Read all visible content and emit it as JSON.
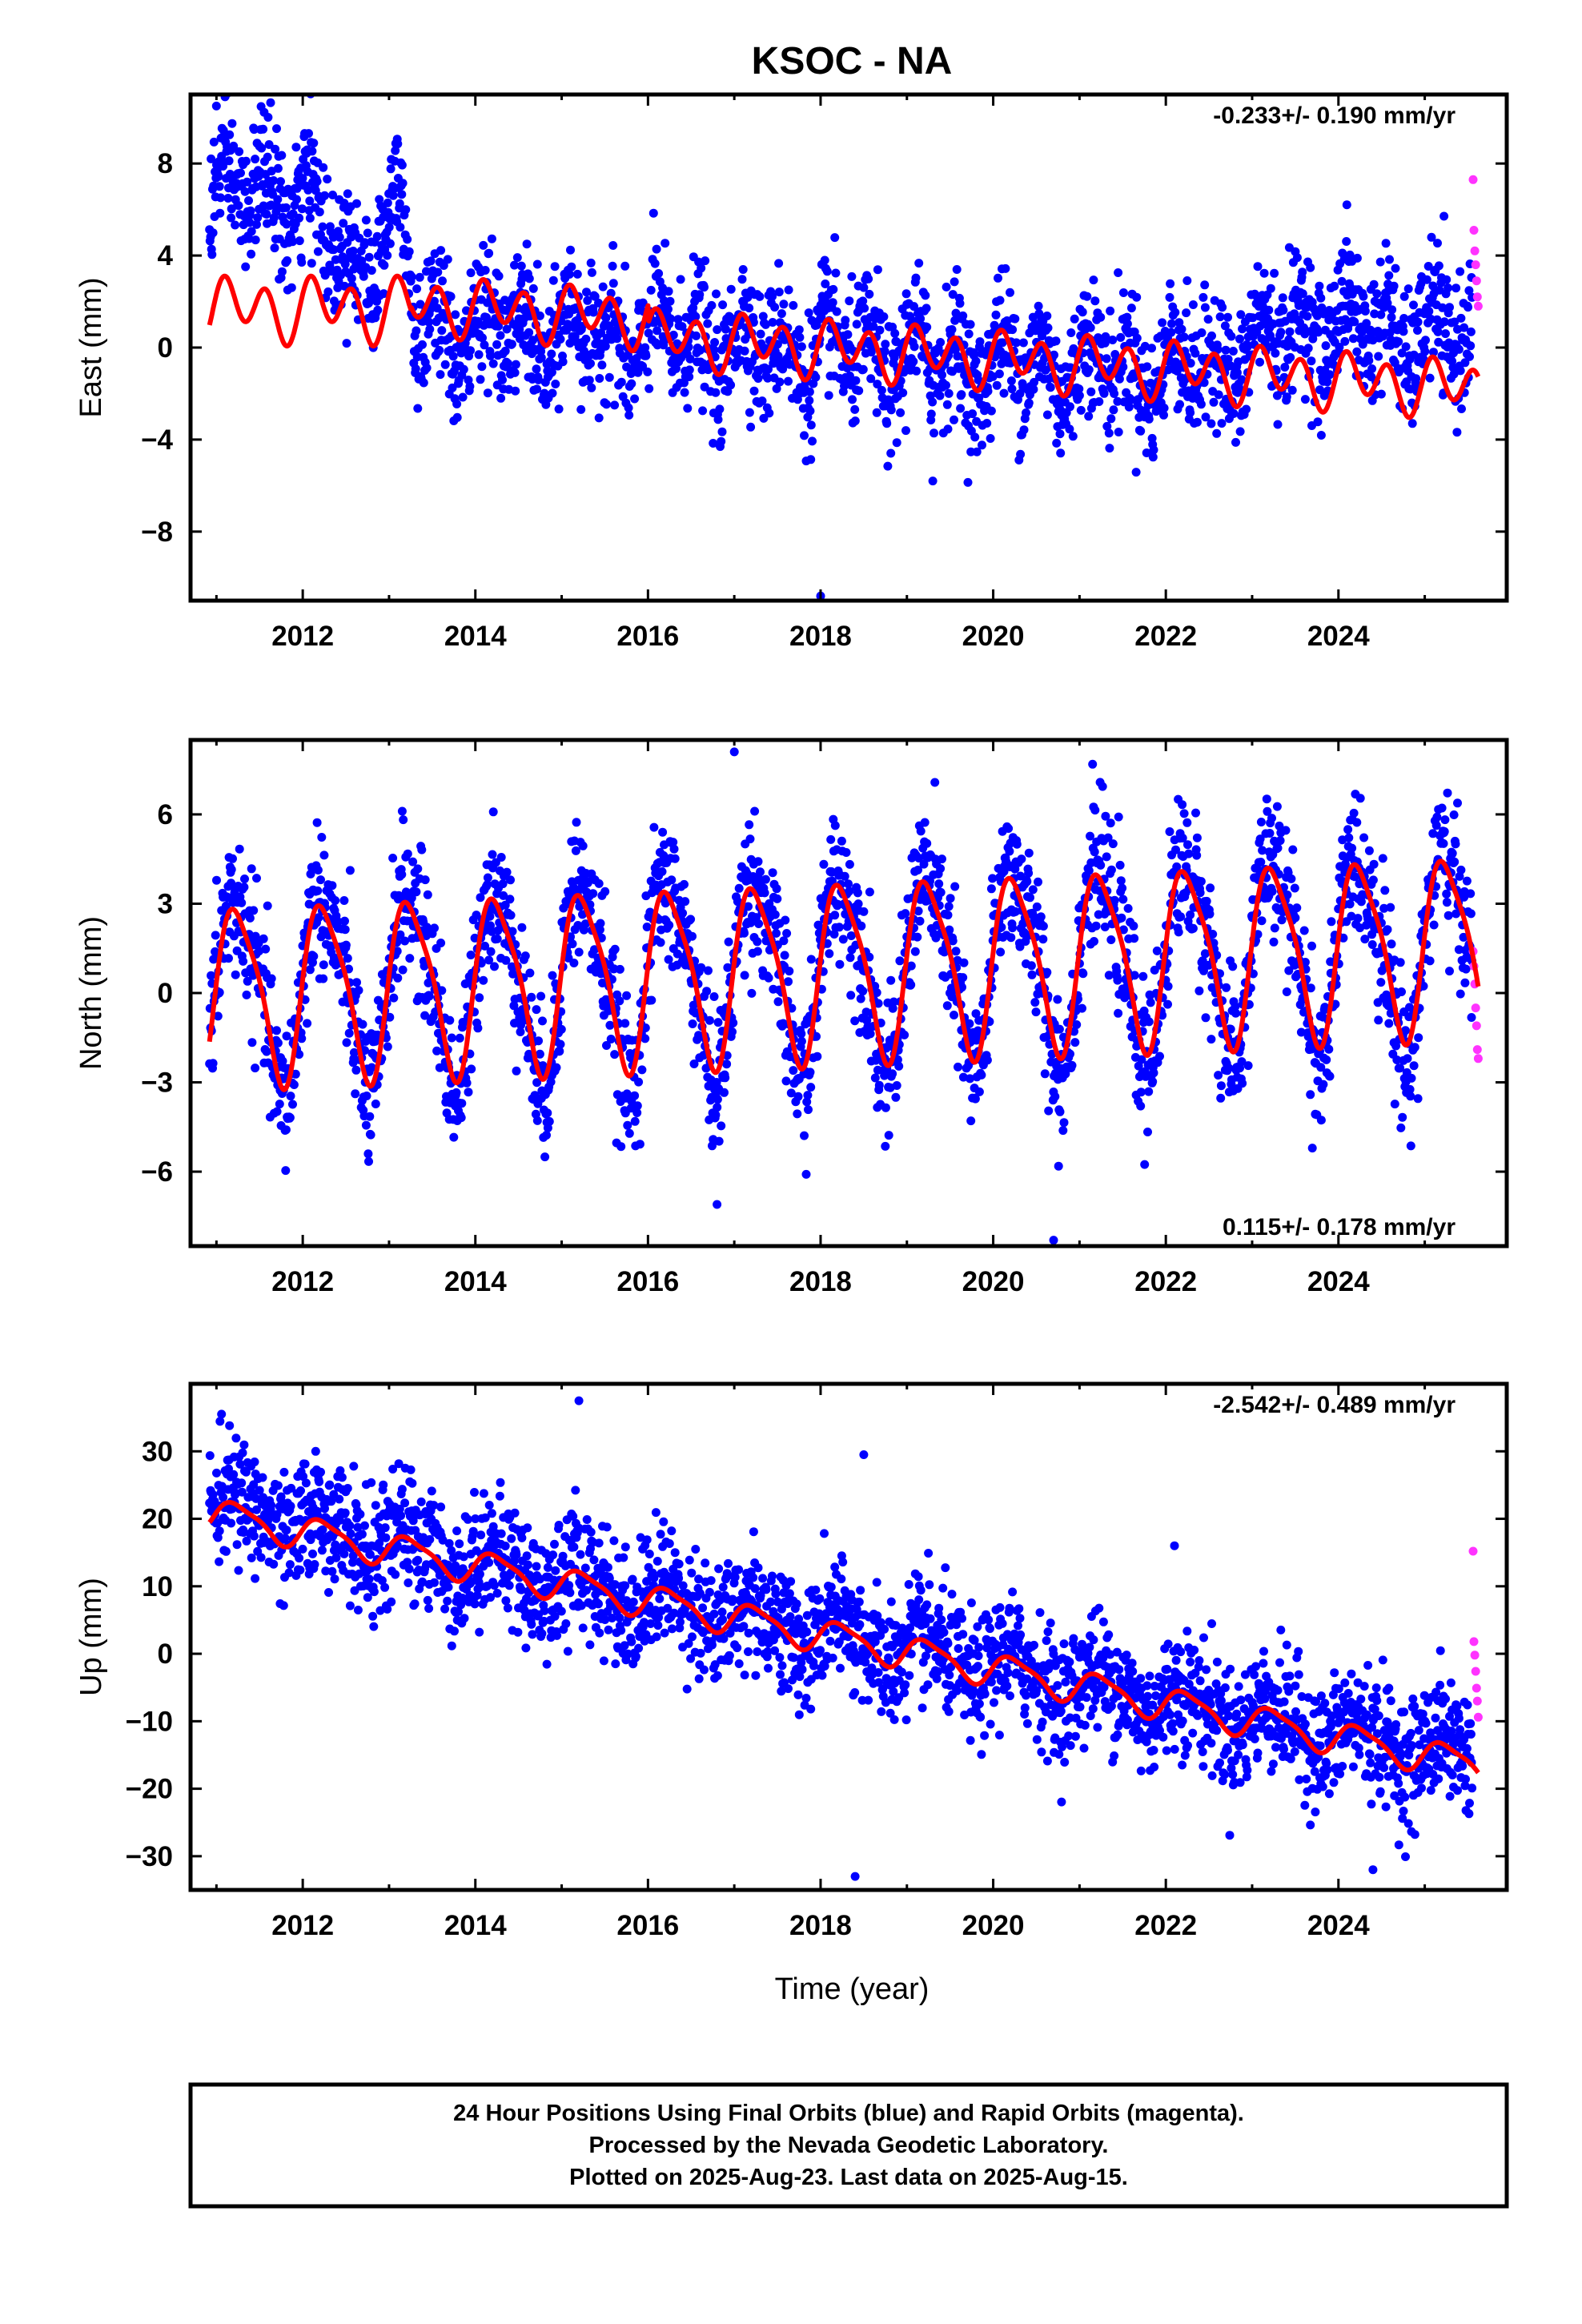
{
  "title": "KSOC - NA",
  "xlabel": "Time (year)",
  "footer": {
    "line1": "24 Hour Positions Using Final Orbits (blue) and Rapid Orbits (magenta).",
    "line2": "Processed by the Nevada Geodetic Laboratory.",
    "line3": "Plotted on 2025-Aug-23. Last data on 2025-Aug-15."
  },
  "colors": {
    "final_orbits": "#0000ff",
    "rapid_orbits": "#ff33ff",
    "model": "#ff0000",
    "frame": "#000000"
  },
  "chart_data": [
    {
      "type": "scatter",
      "name": "east",
      "ylabel": "East (mm)",
      "rate_text": "-0.233+/- 0.190 mm/yr",
      "rate_position": "top-right",
      "xlim": [
        2010.7,
        2025.95
      ],
      "ylim": [
        -11,
        11
      ],
      "x_ticks": [
        2012,
        2014,
        2016,
        2018,
        2020,
        2022,
        2024
      ],
      "y_ticks": [
        -8,
        -4,
        0,
        4,
        8
      ],
      "y_tick_labels": [
        "−8",
        "−4",
        "0",
        "4",
        "8"
      ],
      "grid": false,
      "model": {
        "name": "fitted model",
        "segments": [
          {
            "start": 2010.92,
            "end": 2013.25,
            "offset": 1.7,
            "rate": 0.0,
            "annual_amp": 0.6,
            "semiannual_amp": 1.1
          },
          {
            "start": 2013.25,
            "end": 2025.62,
            "offset": 1.9,
            "rate": -0.233,
            "annual_amp": 0.5,
            "semiannual_amp": 1.0
          }
        ],
        "steps": [
          {
            "epoch": 2016.0,
            "delta": -0.8
          }
        ]
      },
      "series": [
        {
          "name": "Final Orbits",
          "span": [
            2010.92,
            2025.55
          ],
          "trend_points": [
            [
              2010.92,
              6.4
            ],
            [
              2011.8,
              7.0
            ],
            [
              2012.6,
              3.6
            ],
            [
              2013.15,
              6.2
            ],
            [
              2013.3,
              0.8
            ],
            [
              2016.0,
              0.4
            ],
            [
              2020.0,
              -0.7
            ],
            [
              2022.5,
              -0.9
            ],
            [
              2023.7,
              1.2
            ],
            [
              2025.55,
              0.3
            ]
          ],
          "scatter_sd": 1.4,
          "outliers": [
            [
              2011.0,
              10.5
            ],
            [
              2018.0,
              -10.8
            ],
            [
              2019.3,
              -5.8
            ]
          ]
        },
        {
          "name": "Rapid Orbits",
          "span": [
            2025.56,
            2025.62
          ],
          "values": [
            [
              2025.56,
              7.3
            ],
            [
              2025.57,
              5.1
            ],
            [
              2025.58,
              4.2
            ],
            [
              2025.59,
              3.6
            ],
            [
              2025.6,
              2.9
            ],
            [
              2025.61,
              2.2
            ],
            [
              2025.62,
              1.8
            ]
          ]
        }
      ]
    },
    {
      "type": "scatter",
      "name": "north",
      "ylabel": "North (mm)",
      "rate_text": "0.115+/- 0.178 mm/yr",
      "rate_position": "bottom-right",
      "xlim": [
        2010.7,
        2025.95
      ],
      "ylim": [
        -8.5,
        8.5
      ],
      "x_ticks": [
        2012,
        2014,
        2016,
        2018,
        2020,
        2022,
        2024
      ],
      "y_ticks": [
        -6,
        -3,
        0,
        3,
        6
      ],
      "y_tick_labels": [
        "−6",
        "−3",
        "0",
        "3",
        "6"
      ],
      "grid": false,
      "model": {
        "name": "fitted model",
        "segments": [
          {
            "start": 2010.92,
            "end": 2025.62,
            "offset": 0.0,
            "rate": 0.115,
            "annual_amp": 2.9,
            "semiannual_amp": 0.6
          }
        ],
        "steps": []
      },
      "series": [
        {
          "name": "Final Orbits",
          "span": [
            2010.92,
            2025.55
          ],
          "trend_points": [
            [
              2010.92,
              0.0
            ],
            [
              2025.55,
              1.6
            ]
          ],
          "scatter_sd": 1.2,
          "outliers": [
            [
              2017.0,
              8.1
            ],
            [
              2020.7,
              -8.3
            ],
            [
              2016.8,
              -7.1
            ]
          ]
        },
        {
          "name": "Rapid Orbits",
          "span": [
            2025.56,
            2025.62
          ],
          "values": [
            [
              2025.56,
              1.4
            ],
            [
              2025.57,
              0.9
            ],
            [
              2025.58,
              0.3
            ],
            [
              2025.59,
              -0.5
            ],
            [
              2025.6,
              -1.1
            ],
            [
              2025.61,
              -1.9
            ],
            [
              2025.62,
              -2.2
            ]
          ]
        }
      ]
    },
    {
      "type": "scatter",
      "name": "up",
      "ylabel": "Up (mm)",
      "rate_text": "-2.542+/- 0.489 mm/yr",
      "rate_position": "top-right",
      "xlim": [
        2010.7,
        2025.95
      ],
      "ylim": [
        -35,
        40
      ],
      "x_ticks": [
        2012,
        2014,
        2016,
        2018,
        2020,
        2022,
        2024
      ],
      "y_ticks": [
        -30,
        -20,
        -10,
        0,
        10,
        20,
        30
      ],
      "y_tick_labels": [
        "−30",
        "−20",
        "−10",
        "0",
        "10",
        "20",
        "30"
      ],
      "grid": false,
      "model": {
        "name": "fitted model",
        "segments": [
          {
            "start": 2010.92,
            "end": 2025.62,
            "offset": 20.8,
            "rate": -2.542,
            "annual_amp": 2.3,
            "semiannual_amp": 0.6
          }
        ],
        "steps": []
      },
      "series": [
        {
          "name": "Final Orbits",
          "span": [
            2010.92,
            2025.55
          ],
          "trend_points": [
            [
              2010.92,
              22.0
            ],
            [
              2012.0,
              19.0
            ],
            [
              2014.0,
              13.5
            ],
            [
              2016.0,
              8.5
            ],
            [
              2018.0,
              3.0
            ],
            [
              2020.0,
              -2.0
            ],
            [
              2022.0,
              -7.0
            ],
            [
              2024.0,
              -12.0
            ],
            [
              2025.55,
              -15.0
            ]
          ],
          "scatter_sd": 4.5,
          "outliers": [
            [
              2015.2,
              37.5
            ],
            [
              2018.4,
              -33.0
            ],
            [
              2024.4,
              -32.0
            ],
            [
              2018.5,
              29.5
            ],
            [
              2022.1,
              16.0
            ]
          ]
        },
        {
          "name": "Rapid Orbits",
          "span": [
            2025.56,
            2025.62
          ],
          "values": [
            [
              2025.56,
              15.2
            ],
            [
              2025.57,
              1.8
            ],
            [
              2025.58,
              -0.2
            ],
            [
              2025.59,
              -2.6
            ],
            [
              2025.6,
              -5.1
            ],
            [
              2025.61,
              -7.0
            ],
            [
              2025.62,
              -9.4
            ]
          ]
        }
      ]
    }
  ]
}
